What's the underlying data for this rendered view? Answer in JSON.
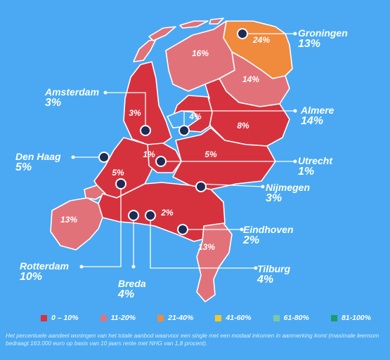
{
  "colors": {
    "background": "#4aa9f2",
    "0-10": "#d6323e",
    "11-20": "#e2727a",
    "21-40": "#f08a3c",
    "41-60": "#f5c72c",
    "61-80": "#7cc7a6",
    "81-100": "#1f9a6b",
    "pin": "#1f2a55"
  },
  "provinces": [
    {
      "id": "groningen",
      "pct": "24%"
    },
    {
      "id": "friesland",
      "pct": "16%"
    },
    {
      "id": "drenthe",
      "pct": "14%"
    },
    {
      "id": "noord-holland",
      "pct": "3%"
    },
    {
      "id": "flevoland",
      "pct": "4%"
    },
    {
      "id": "overijssel",
      "pct": "8%"
    },
    {
      "id": "utrecht",
      "pct": "1%"
    },
    {
      "id": "gelderland",
      "pct": "5%"
    },
    {
      "id": "zuid-holland",
      "pct": "5%"
    },
    {
      "id": "zeeland",
      "pct": "13%"
    },
    {
      "id": "noord-brabant",
      "pct": "2%"
    },
    {
      "id": "limburg",
      "pct": "13%"
    }
  ],
  "cities": {
    "groningen": {
      "name": "Groningen",
      "pct": "13%"
    },
    "amsterdam": {
      "name": "Amsterdam",
      "pct": "3%"
    },
    "almere": {
      "name": "Almere",
      "pct": "14%"
    },
    "den_haag": {
      "name": "Den Haag",
      "pct": "5%"
    },
    "utrecht": {
      "name": "Utrecht",
      "pct": "1%"
    },
    "nijmegen": {
      "name": "Nijmegen",
      "pct": "3%"
    },
    "eindhoven": {
      "name": "Eindhoven",
      "pct": "2%"
    },
    "rotterdam": {
      "name": "Rotterdam",
      "pct": "10%"
    },
    "breda": {
      "name": "Breda",
      "pct": "4%"
    },
    "tilburg": {
      "name": "Tilburg",
      "pct": "4%"
    }
  },
  "legend": [
    {
      "label": "0 – 10%",
      "color": "#d6323e"
    },
    {
      "label": "11-20%",
      "color": "#e2727a"
    },
    {
      "label": "21-40%",
      "color": "#f08a3c"
    },
    {
      "label": "41-60%",
      "color": "#f5c72c"
    },
    {
      "label": "61-80%",
      "color": "#7cc7a6"
    },
    {
      "label": "81-100%",
      "color": "#1f9a6b"
    }
  ],
  "footnote": "Het percentuele aandeel woningen van het totale aanbod waarvoor een single met een modaal inkomen in aanmerking komt (maximale leensom bedraagt 163.000 euro op basis van 10 jaars rente met NHG van 1,8 procent)."
}
